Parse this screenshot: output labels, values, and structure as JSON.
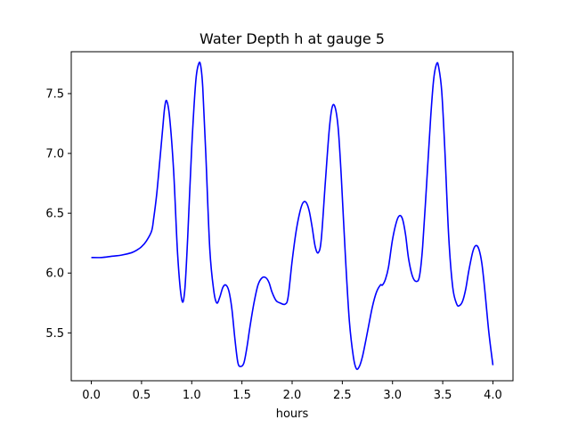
{
  "chart_data": {
    "type": "line",
    "title": "Water Depth h at gauge 5",
    "xlabel": "hours",
    "ylabel": "",
    "xlim": [
      -0.2,
      4.2
    ],
    "ylim": [
      5.1,
      7.85
    ],
    "xticks": [
      0.0,
      0.5,
      1.0,
      1.5,
      2.0,
      2.5,
      3.0,
      3.5,
      4.0
    ],
    "xtick_labels": [
      "0.0",
      "0.5",
      "1.0",
      "1.5",
      "2.0",
      "2.5",
      "3.0",
      "3.5",
      "4.0"
    ],
    "yticks": [
      5.5,
      6.0,
      6.5,
      7.0,
      7.5
    ],
    "ytick_labels": [
      "5.5",
      "6.0",
      "6.5",
      "7.0",
      "7.5"
    ],
    "grid": false,
    "series": [
      {
        "color": "#0000ff",
        "x": [
          0.0,
          0.1,
          0.2,
          0.3,
          0.4,
          0.45,
          0.5,
          0.55,
          0.6,
          0.62,
          0.65,
          0.68,
          0.71,
          0.73,
          0.75,
          0.78,
          0.82,
          0.86,
          0.9,
          0.93,
          0.96,
          1.0,
          1.04,
          1.07,
          1.09,
          1.11,
          1.14,
          1.18,
          1.22,
          1.25,
          1.28,
          1.31,
          1.34,
          1.37,
          1.4,
          1.43,
          1.46,
          1.49,
          1.52,
          1.55,
          1.58,
          1.62,
          1.66,
          1.7,
          1.74,
          1.77,
          1.8,
          1.84,
          1.88,
          1.93,
          1.96,
          2.0,
          2.04,
          2.08,
          2.11,
          2.14,
          2.17,
          2.2,
          2.23,
          2.26,
          2.29,
          2.33,
          2.37,
          2.4,
          2.43,
          2.46,
          2.49,
          2.53,
          2.57,
          2.61,
          2.64,
          2.67,
          2.7,
          2.73,
          2.76,
          2.8,
          2.84,
          2.88,
          2.9,
          2.93,
          2.96,
          3.0,
          3.04,
          3.07,
          3.1,
          3.13,
          3.16,
          3.2,
          3.24,
          3.27,
          3.3,
          3.34,
          3.38,
          3.41,
          3.44,
          3.46,
          3.49,
          3.52,
          3.56,
          3.6,
          3.64,
          3.67,
          3.7,
          3.73,
          3.76,
          3.8,
          3.83,
          3.86,
          3.89,
          3.92,
          3.96,
          4.0
        ],
        "y": [
          6.13,
          6.13,
          6.14,
          6.15,
          6.17,
          6.19,
          6.22,
          6.27,
          6.35,
          6.45,
          6.65,
          6.92,
          7.2,
          7.38,
          7.44,
          7.3,
          6.85,
          6.15,
          5.78,
          5.85,
          6.3,
          7.05,
          7.6,
          7.75,
          7.73,
          7.55,
          7.0,
          6.2,
          5.85,
          5.75,
          5.8,
          5.88,
          5.9,
          5.85,
          5.7,
          5.45,
          5.25,
          5.22,
          5.25,
          5.38,
          5.55,
          5.75,
          5.9,
          5.96,
          5.96,
          5.92,
          5.84,
          5.77,
          5.75,
          5.74,
          5.8,
          6.1,
          6.35,
          6.52,
          6.59,
          6.59,
          6.52,
          6.38,
          6.22,
          6.17,
          6.28,
          6.75,
          7.2,
          7.39,
          7.38,
          7.2,
          6.8,
          6.15,
          5.6,
          5.3,
          5.2,
          5.22,
          5.3,
          5.42,
          5.55,
          5.72,
          5.84,
          5.9,
          5.9,
          5.95,
          6.05,
          6.28,
          6.43,
          6.48,
          6.45,
          6.32,
          6.12,
          5.97,
          5.93,
          5.98,
          6.22,
          6.75,
          7.3,
          7.62,
          7.75,
          7.72,
          7.52,
          7.05,
          6.3,
          5.88,
          5.74,
          5.73,
          5.77,
          5.87,
          6.02,
          6.18,
          6.23,
          6.2,
          6.08,
          5.85,
          5.5,
          5.23
        ]
      }
    ]
  }
}
